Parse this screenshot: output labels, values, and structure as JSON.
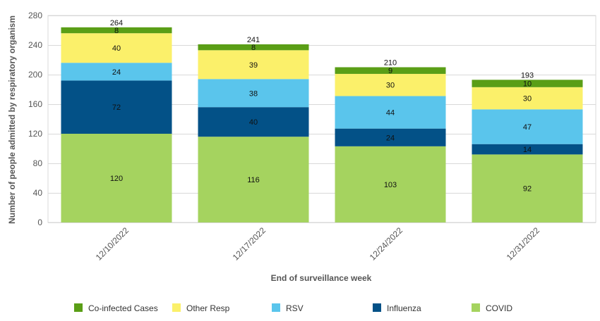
{
  "chart_data": {
    "type": "bar",
    "stacked": true,
    "categories": [
      "12/10/2022",
      "12/17/2022",
      "12/24/2022",
      "12/31/2022"
    ],
    "series": [
      {
        "name": "COVID",
        "color": "#a5d35f",
        "values": [
          120,
          116,
          103,
          92
        ]
      },
      {
        "name": "Influenza",
        "color": "#035187",
        "values": [
          72,
          40,
          24,
          14
        ]
      },
      {
        "name": "RSV",
        "color": "#5ac5ec",
        "values": [
          24,
          38,
          44,
          47
        ]
      },
      {
        "name": "Other Resp",
        "color": "#fbf06a",
        "values": [
          40,
          39,
          30,
          30
        ]
      },
      {
        "name": "Co-infected Cases",
        "color": "#5a9e16",
        "values": [
          8,
          8,
          9,
          10
        ]
      }
    ],
    "totals": [
      264,
      241,
      210,
      193
    ],
    "legend_order": [
      "Co-infected Cases",
      "Other Resp",
      "RSV",
      "Influenza",
      "COVID"
    ],
    "xlabel": "End of surveillance week",
    "ylabel": "Number of people admitted by respiratory organism",
    "ylim": [
      0,
      280
    ],
    "yticks": [
      0,
      40,
      80,
      120,
      160,
      200,
      240,
      280
    ],
    "grid": true,
    "legend_position": "bottom"
  }
}
